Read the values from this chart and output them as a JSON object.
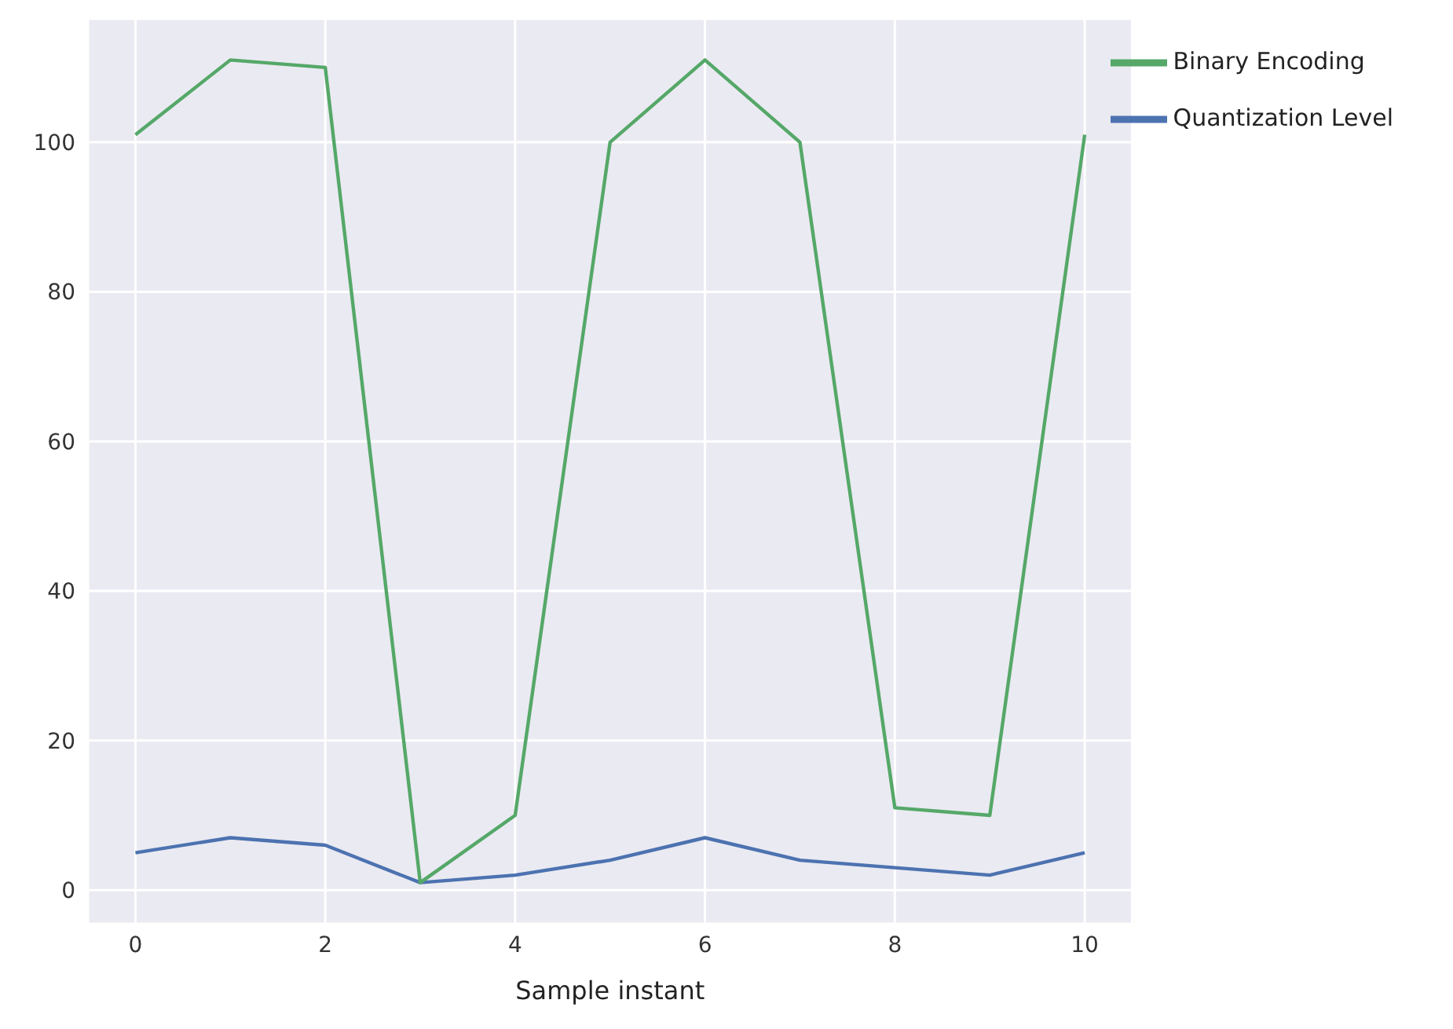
{
  "chart_data": {
    "type": "line",
    "xlabel": "Sample instant",
    "x": [
      0,
      1,
      2,
      3,
      4,
      5,
      6,
      7,
      8,
      9,
      10
    ],
    "series": [
      {
        "name": "Quantization Level",
        "color": "#4c72b0",
        "values": [
          5,
          7,
          6,
          1,
          2,
          4,
          7,
          4,
          3,
          2,
          5
        ]
      },
      {
        "name": "Binary Encoding",
        "color": "#55a868",
        "values": [
          101,
          111,
          110,
          1,
          10,
          100,
          111,
          100,
          11,
          10,
          101
        ]
      }
    ],
    "xlim": [
      -0.5,
      10.5
    ],
    "xticks": [
      0,
      2,
      4,
      6,
      8,
      10
    ],
    "ylim": [
      -4.5,
      116.5
    ],
    "yticks": [
      0,
      20,
      40,
      60,
      80,
      100
    ],
    "grid": true,
    "legend": "top right",
    "marker": "none",
    "line_style": "solid"
  }
}
